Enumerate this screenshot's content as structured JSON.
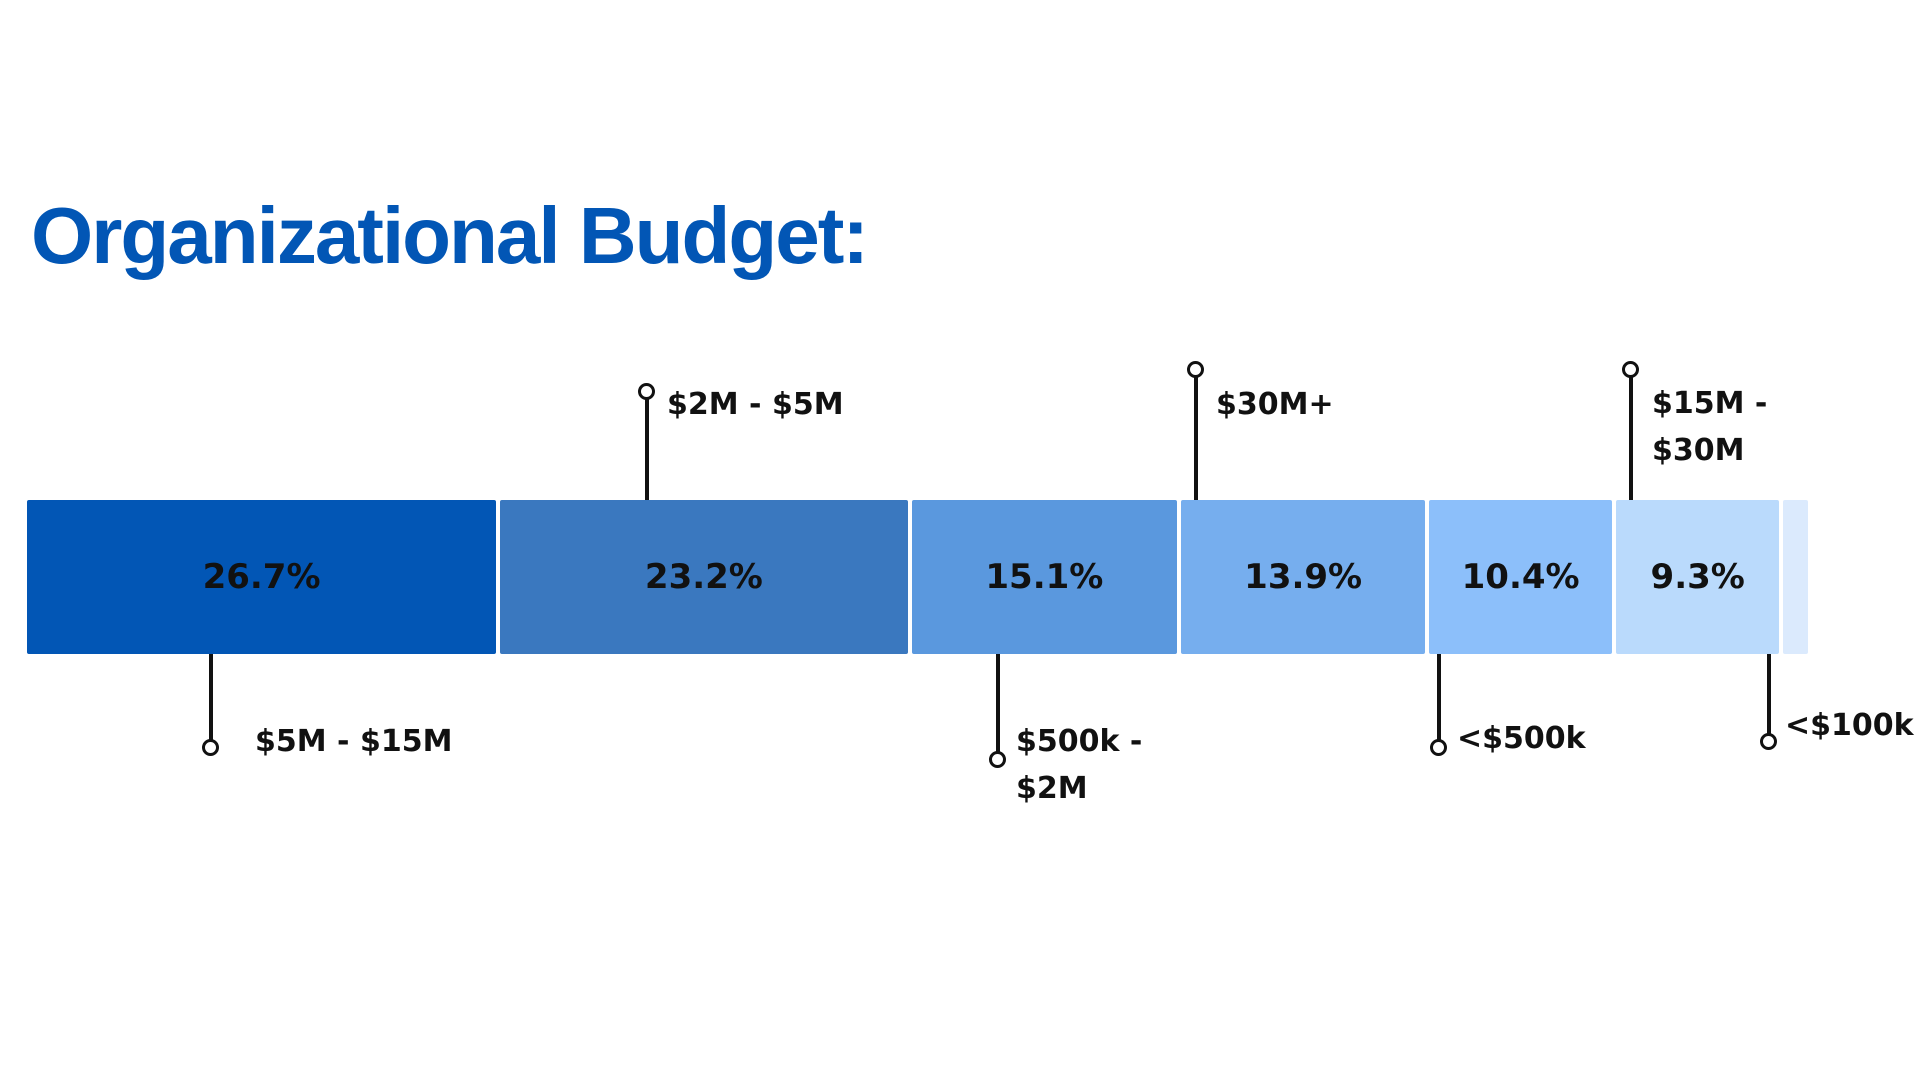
{
  "chart_data": {
    "type": "bar",
    "orientation": "horizontal-stacked",
    "title": "Organizational Budget:",
    "categories": [
      "$5M - $15M",
      "$2M - $5M",
      "$500k - $2M",
      "$30M+",
      "<$500k",
      "$15M - $30M",
      "<$100k"
    ],
    "category_lines": [
      [
        "$5M - $15M"
      ],
      [
        "$2M - $5M"
      ],
      [
        "$500k -",
        "$2M"
      ],
      [
        "$30M+"
      ],
      [
        "<$500k"
      ],
      [
        "$15M -",
        "$30M"
      ],
      [
        "<$100k"
      ]
    ],
    "values": [
      26.7,
      23.2,
      15.1,
      13.9,
      10.4,
      9.3,
      1.4
    ],
    "value_labels": [
      "26.7%",
      "23.2%",
      "15.1%",
      "13.9%",
      "10.4%",
      "9.3%",
      ""
    ],
    "label_side": [
      "below",
      "above",
      "below",
      "above",
      "below",
      "above",
      "below"
    ],
    "colors": [
      "#0256b5",
      "#3a78bf",
      "#5a98de",
      "#76aeee",
      "#8cbffa",
      "#badafc",
      "#dbeafd"
    ],
    "unit": "%"
  }
}
